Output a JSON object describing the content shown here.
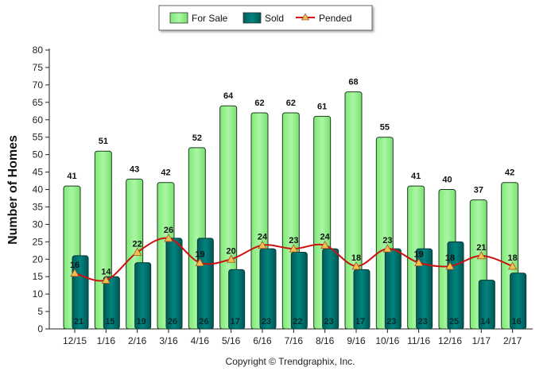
{
  "chart_data": {
    "type": "bar",
    "categories": [
      "12/15",
      "1/16",
      "2/16",
      "3/16",
      "4/16",
      "5/16",
      "6/16",
      "7/16",
      "8/16",
      "9/16",
      "10/16",
      "11/16",
      "12/16",
      "1/17",
      "2/17"
    ],
    "series": [
      {
        "name": "For Sale",
        "type": "bar",
        "color": "#99f590",
        "values": [
          41,
          51,
          43,
          42,
          52,
          64,
          62,
          62,
          61,
          68,
          55,
          41,
          40,
          37,
          42
        ]
      },
      {
        "name": "Sold",
        "type": "bar",
        "color": "#007672",
        "values": [
          21,
          15,
          19,
          26,
          26,
          17,
          23,
          22,
          23,
          17,
          23,
          23,
          25,
          14,
          16
        ]
      },
      {
        "name": "Pended",
        "type": "line",
        "color": "#cc1111",
        "marker_color": "#f4c04a",
        "values": [
          16,
          14,
          22,
          26,
          19,
          20,
          24,
          23,
          24,
          18,
          23,
          19,
          18,
          21,
          18
        ]
      }
    ],
    "ylabel": "Number of Homes",
    "xlabel": "",
    "ylim": [
      0,
      80
    ],
    "ytick_step": 5,
    "legend_position": "top-center",
    "grid": false
  },
  "copyright": "Copyright © Trendgraphix, Inc."
}
